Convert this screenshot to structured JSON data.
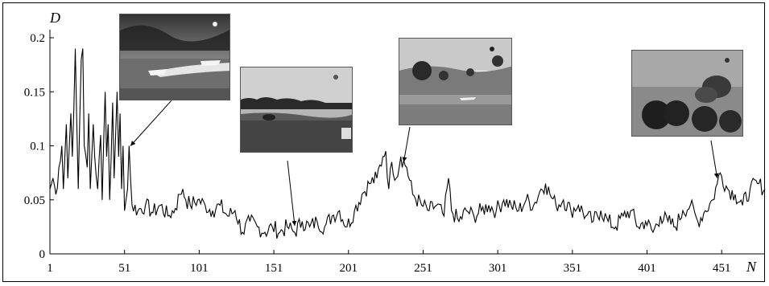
{
  "chart_data": {
    "type": "line",
    "title": "",
    "xlabel": "N",
    "ylabel": "D",
    "xlim": [
      1,
      480
    ],
    "ylim": [
      0,
      0.2
    ],
    "x_ticks": [
      1,
      51,
      101,
      151,
      201,
      251,
      301,
      351,
      401,
      451
    ],
    "x_tick_labels": [
      "1",
      "51",
      "101",
      "151",
      "201",
      "251",
      "301",
      "351",
      "401",
      "451"
    ],
    "y_ticks": [
      0,
      0.05,
      0.1,
      0.15,
      0.2
    ],
    "y_tick_labels": [
      "0",
      "0.05",
      "0.1",
      "0.15",
      "0.2"
    ],
    "grid": false,
    "series": [
      {
        "color": "#000000",
        "keypoints": [
          [
            1,
            0.06
          ],
          [
            3,
            0.07
          ],
          [
            5,
            0.055
          ],
          [
            7,
            0.08
          ],
          [
            9,
            0.1
          ],
          [
            10,
            0.06
          ],
          [
            12,
            0.12
          ],
          [
            13,
            0.07
          ],
          [
            15,
            0.13
          ],
          [
            16,
            0.09
          ],
          [
            18,
            0.19
          ],
          [
            19,
            0.12
          ],
          [
            20,
            0.06
          ],
          [
            22,
            0.18
          ],
          [
            23,
            0.19
          ],
          [
            24,
            0.1
          ],
          [
            26,
            0.08
          ],
          [
            27,
            0.13
          ],
          [
            28,
            0.06
          ],
          [
            30,
            0.12
          ],
          [
            31,
            0.09
          ],
          [
            33,
            0.06
          ],
          [
            35,
            0.11
          ],
          [
            36,
            0.05
          ],
          [
            38,
            0.15
          ],
          [
            39,
            0.09
          ],
          [
            40,
            0.12
          ],
          [
            41,
            0.05
          ],
          [
            43,
            0.14
          ],
          [
            44,
            0.07
          ],
          [
            46,
            0.15
          ],
          [
            47,
            0.09
          ],
          [
            48,
            0.13
          ],
          [
            49,
            0.06
          ],
          [
            50,
            0.1
          ],
          [
            51,
            0.04
          ],
          [
            52,
            0.05
          ],
          [
            53,
            0.06
          ],
          [
            54,
            0.1
          ],
          [
            55,
            0.07
          ],
          [
            56,
            0.045
          ],
          [
            60,
            0.04
          ],
          [
            65,
            0.045
          ],
          [
            70,
            0.038
          ],
          [
            75,
            0.045
          ],
          [
            80,
            0.035
          ],
          [
            85,
            0.042
          ],
          [
            88,
            0.055
          ],
          [
            90,
            0.06
          ],
          [
            92,
            0.05
          ],
          [
            95,
            0.045
          ],
          [
            100,
            0.05
          ],
          [
            105,
            0.045
          ],
          [
            110,
            0.04
          ],
          [
            115,
            0.045
          ],
          [
            120,
            0.035
          ],
          [
            125,
            0.04
          ],
          [
            130,
            0.02
          ],
          [
            135,
            0.03
          ],
          [
            140,
            0.025
          ],
          [
            145,
            0.02
          ],
          [
            150,
            0.025
          ],
          [
            155,
            0.02
          ],
          [
            160,
            0.025
          ],
          [
            165,
            0.02
          ],
          [
            170,
            0.03
          ],
          [
            175,
            0.025
          ],
          [
            180,
            0.03
          ],
          [
            185,
            0.025
          ],
          [
            190,
            0.035
          ],
          [
            195,
            0.04
          ],
          [
            200,
            0.025
          ],
          [
            205,
            0.04
          ],
          [
            210,
            0.055
          ],
          [
            215,
            0.065
          ],
          [
            220,
            0.07
          ],
          [
            224,
            0.09
          ],
          [
            226,
            0.095
          ],
          [
            228,
            0.06
          ],
          [
            230,
            0.085
          ],
          [
            233,
            0.07
          ],
          [
            236,
            0.09
          ],
          [
            240,
            0.08
          ],
          [
            244,
            0.055
          ],
          [
            250,
            0.045
          ],
          [
            255,
            0.04
          ],
          [
            260,
            0.045
          ],
          [
            265,
            0.035
          ],
          [
            268,
            0.07
          ],
          [
            270,
            0.04
          ],
          [
            275,
            0.03
          ],
          [
            280,
            0.04
          ],
          [
            285,
            0.035
          ],
          [
            290,
            0.04
          ],
          [
            295,
            0.045
          ],
          [
            300,
            0.04
          ],
          [
            305,
            0.05
          ],
          [
            310,
            0.045
          ],
          [
            315,
            0.04
          ],
          [
            320,
            0.05
          ],
          [
            325,
            0.045
          ],
          [
            330,
            0.06
          ],
          [
            333,
            0.065
          ],
          [
            336,
            0.055
          ],
          [
            340,
            0.045
          ],
          [
            345,
            0.05
          ],
          [
            350,
            0.04
          ],
          [
            355,
            0.045
          ],
          [
            360,
            0.035
          ],
          [
            365,
            0.03
          ],
          [
            370,
            0.04
          ],
          [
            375,
            0.03
          ],
          [
            380,
            0.025
          ],
          [
            385,
            0.035
          ],
          [
            390,
            0.04
          ],
          [
            395,
            0.025
          ],
          [
            400,
            0.03
          ],
          [
            405,
            0.02
          ],
          [
            410,
            0.035
          ],
          [
            415,
            0.03
          ],
          [
            420,
            0.025
          ],
          [
            425,
            0.04
          ],
          [
            430,
            0.045
          ],
          [
            435,
            0.03
          ],
          [
            440,
            0.04
          ],
          [
            445,
            0.05
          ],
          [
            448,
            0.065
          ],
          [
            450,
            0.075
          ],
          [
            455,
            0.06
          ],
          [
            460,
            0.055
          ],
          [
            465,
            0.045
          ],
          [
            470,
            0.06
          ],
          [
            475,
            0.065
          ],
          [
            480,
            0.06
          ]
        ]
      }
    ],
    "annotations": [
      {
        "target_x": 55,
        "target_y": 0.1,
        "image": "photo-boats-speeding"
      },
      {
        "target_x": 165,
        "target_y": 0.026,
        "image": "photo-river-shore"
      },
      {
        "target_x": 238,
        "target_y": 0.085,
        "image": "photo-trees-lake"
      },
      {
        "target_x": 448,
        "target_y": 0.07,
        "image": "photo-explosion-trees"
      }
    ]
  }
}
